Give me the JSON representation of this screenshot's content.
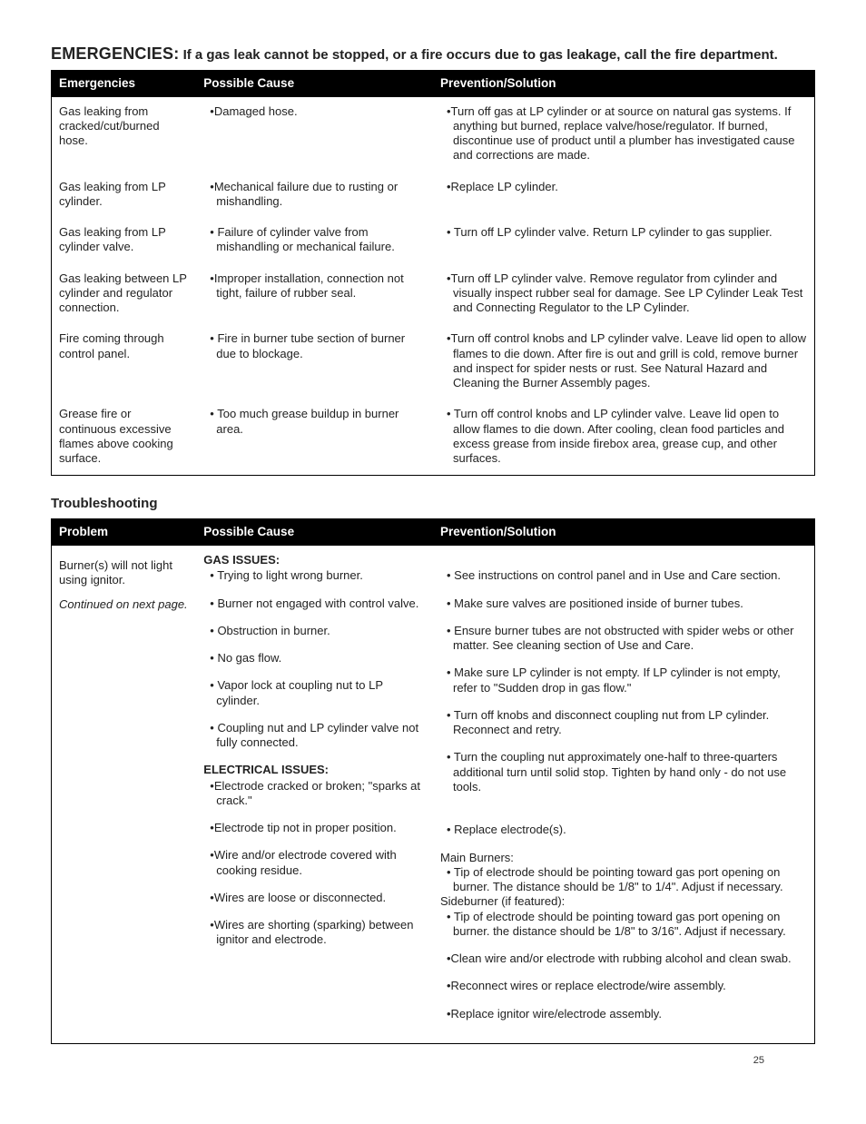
{
  "page_number": "25",
  "emergencies": {
    "heading_prefix": "EMERGENCIES:",
    "heading_rest": " If a gas leak cannot be stopped, or a fire occurs due to gas leakage, call the fire department.",
    "columns": [
      "Emergencies",
      "Possible Cause",
      "Prevention/Solution"
    ],
    "rows": [
      {
        "problem": "Gas leaking from cracked/cut/burned hose.",
        "causes": [
          "•Damaged hose."
        ],
        "solutions": [
          "•Turn off gas at LP cylinder or at source on natural gas systems. If anything but burned, replace valve/hose/regulator. If burned, discontinue use of product until a plumber has investigated cause and corrections are made."
        ]
      },
      {
        "problem": "Gas leaking from LP cylinder.",
        "causes": [
          "•Mechanical failure due to rusting or mishandling."
        ],
        "solutions": [
          "•Replace LP cylinder."
        ]
      },
      {
        "problem": "Gas leaking from LP cylinder valve.",
        "causes": [
          "• Failure of cylinder valve from mishandling or mechanical failure."
        ],
        "solutions": [
          "• Turn off LP cylinder valve. Return LP cylinder to gas supplier."
        ]
      },
      {
        "problem": "Gas leaking between LP cylinder and regulator connection.",
        "causes": [
          "•Improper installation, connection not tight, failure of rubber seal."
        ],
        "solutions": [
          "•Turn off LP cylinder valve. Remove regulator from cylinder and visually inspect rubber seal for damage. See LP Cylinder Leak Test and Connecting Regulator to the LP Cylinder."
        ]
      },
      {
        "problem": "Fire coming through control panel.",
        "causes": [
          "• Fire in burner tube section of burner due to blockage."
        ],
        "solutions": [
          "•Turn off control knobs and LP cylinder valve. Leave lid open to allow flames to die down. After fire is out and grill is cold, remove burner and inspect for spider nests or rust. See Natural Hazard and Cleaning the Burner Assembly pages."
        ]
      },
      {
        "problem": "Grease fire or continuous excessive flames above cooking surface.",
        "causes": [
          "• Too much grease buildup in burner area."
        ],
        "solutions": [
          "• Turn off control knobs and LP cylinder valve. Leave lid open to allow flames to die down. After cooling, clean food particles and excess grease from inside firebox area, grease cup, and other surfaces."
        ]
      }
    ]
  },
  "troubleshooting": {
    "heading": "Troubleshooting",
    "columns": [
      "Problem",
      "Possible Cause",
      "Prevention/Solution"
    ],
    "problem": "Burner(s) will not  light using ignitor.",
    "continued": "Continued on next page.",
    "items": [
      {
        "cause_head": "GAS ISSUES:",
        "cause": "• Trying to light wrong burner.",
        "solution": "• See instructions on control panel and in Use and Care section."
      },
      {
        "cause": "• Burner not engaged with control valve.",
        "solution": "• Make sure valves are positioned inside of burner tubes."
      },
      {
        "cause": "• Obstruction in burner.",
        "solution": "• Ensure burner tubes are not obstructed with spider webs or other matter. See cleaning section of Use and Care."
      },
      {
        "cause": "• No gas flow.",
        "solution": "• Make sure LP cylinder is not empty. If LP cylinder is not empty, refer to \"Sudden drop in gas flow.\""
      },
      {
        "cause": "• Vapor lock at coupling nut to LP cylinder.",
        "solution": "• Turn off knobs and disconnect coupling nut from LP cylinder. Reconnect and retry."
      },
      {
        "cause": "• Coupling nut and LP cylinder valve not fully connected.",
        "solution": "• Turn the coupling nut approximately one-half to three-quarters additional turn until solid stop. Tighten by hand only - do not use tools."
      },
      {
        "cause_head": "ELECTRICAL ISSUES:",
        "cause": "•Electrode cracked or broken; \"sparks at crack.\"",
        "solution": "• Replace electrode(s)."
      },
      {
        "cause": "•Electrode tip not in proper position.",
        "solution_multi": [
          {
            "plain": "Main Burners:"
          },
          {
            "hang": "• Tip of electrode should be pointing toward gas port opening on burner. The distance should be 1/8\" to 1/4\". Adjust if necessary."
          },
          {
            "plain": "Sideburner (if featured):"
          },
          {
            "hang": "• Tip of electrode should be pointing toward gas port opening on burner. the distance should be 1/8\" to 3/16\". Adjust if necessary."
          }
        ]
      },
      {
        "cause": "•Wire and/or electrode covered with cooking residue.",
        "solution": "•Clean wire and/or electrode with rubbing alcohol and clean swab."
      },
      {
        "cause": "•Wires are loose or disconnected.",
        "solution": "•Reconnect wires or replace electrode/wire assembly."
      },
      {
        "cause": "•Wires are shorting (sparking) between ignitor and electrode.",
        "solution": "•Replace ignitor wire/electrode assembly."
      }
    ]
  }
}
